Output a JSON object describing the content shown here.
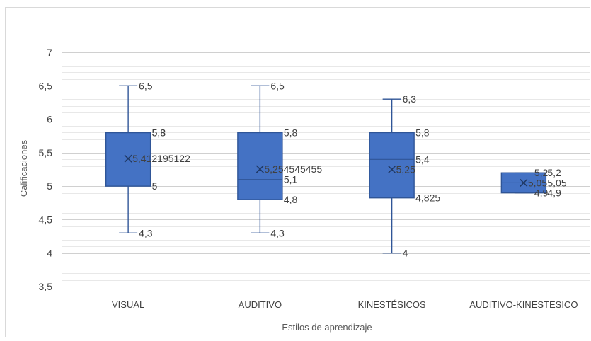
{
  "chart_data": {
    "type": "box",
    "xlabel": "Estilos de aprendizaje",
    "ylabel": "Calificaciones",
    "ylim": [
      3.5,
      7
    ],
    "y_ticks": [
      "3,5",
      "4",
      "4,5",
      "5",
      "5,5",
      "6",
      "6,5",
      "7"
    ],
    "y_tick_values": [
      3.5,
      4,
      4.5,
      5,
      5.5,
      6,
      6.5,
      7
    ],
    "grid": true,
    "colors": {
      "box_fill": "#4472C4",
      "box_stroke": "#2F5597",
      "grid": "#D9D9D9",
      "text": "#404040"
    },
    "categories": [
      "VISUAL",
      "AUDITIVO",
      "KINESTÉSICOS",
      "AUDITIVO-KINESTESICO"
    ],
    "boxes": [
      {
        "category": "VISUAL",
        "min": 4.3,
        "q1": 5.0,
        "median": 5.8,
        "q3": 5.8,
        "max": 6.5,
        "mean": 5.412195122,
        "labels": {
          "max": "6,5",
          "q3": "5,8",
          "median": "5,8",
          "q1": "5",
          "min": "4,3",
          "mean": "5,412195122"
        }
      },
      {
        "category": "AUDITIVO",
        "min": 4.3,
        "q1": 4.8,
        "median": 5.1,
        "q3": 5.8,
        "max": 6.5,
        "mean": 5.254545455,
        "labels": {
          "max": "6,5",
          "q3": "5,8",
          "median": "5,1",
          "q1": "4,8",
          "min": "4,3",
          "mean": "5,254545455"
        }
      },
      {
        "category": "KINESTÉSICOS",
        "min": 4.0,
        "q1": 4.825,
        "median": 5.4,
        "q3": 5.8,
        "max": 6.3,
        "mean": 5.25,
        "labels": {
          "max": "6,3",
          "q3": "5,8",
          "median": "5,4",
          "q1": "4,825",
          "min": "4",
          "mean": "5,25"
        }
      },
      {
        "category": "AUDITIVO-KINESTESICO",
        "min": 4.9,
        "q1": 4.9,
        "median": 5.05,
        "q3": 5.2,
        "max": 5.2,
        "mean": 5.05,
        "labels": {
          "max": "5,2",
          "q3": "5,2",
          "median": "5,05",
          "q1": "4,9",
          "min": "4,9",
          "mean": "5,05"
        }
      }
    ]
  }
}
